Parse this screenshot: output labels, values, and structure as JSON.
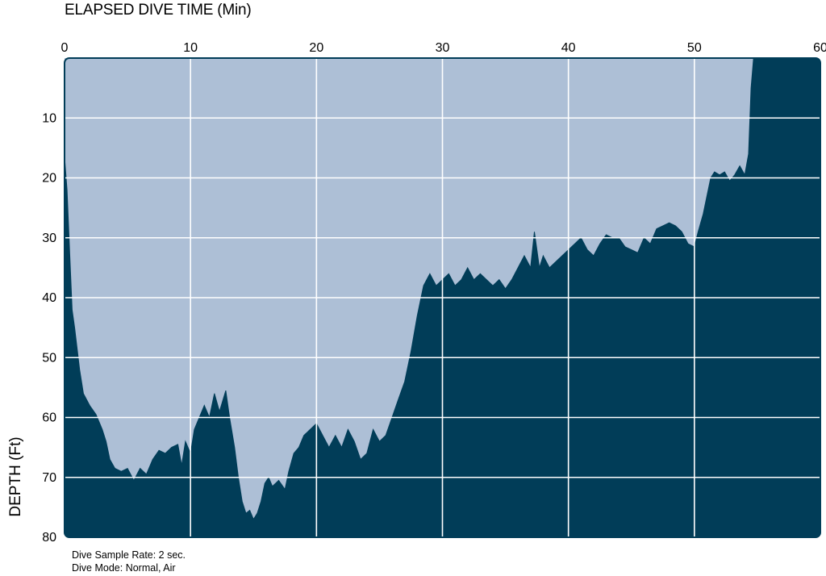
{
  "chart_data": {
    "type": "area",
    "title": "ELAPSED DIVE TIME (Min)",
    "xlabel": "ELAPSED DIVE TIME (Min)",
    "ylabel": "DEPTH (Ft)",
    "xlim": [
      0,
      60
    ],
    "ylim": [
      0,
      80
    ],
    "y_inverted": true,
    "x_axis_position": "top",
    "grid": true,
    "x_ticks": [
      "0",
      "10",
      "20",
      "30",
      "40",
      "50",
      "60"
    ],
    "y_ticks": [
      "10",
      "20",
      "30",
      "40",
      "50",
      "60",
      "70",
      "80"
    ],
    "colors": {
      "water": "#adbfd6",
      "seabed": "#013d58",
      "grid": "#ffffff"
    },
    "series": [
      {
        "points": [
          [
            0,
            16.5
          ],
          [
            0.2,
            22
          ],
          [
            0.4,
            32
          ],
          [
            0.6,
            42
          ],
          [
            0.8,
            45
          ],
          [
            1.2,
            52
          ],
          [
            1.5,
            56
          ],
          [
            2,
            58
          ],
          [
            2.5,
            59.5
          ],
          [
            3,
            62
          ],
          [
            3.3,
            64
          ],
          [
            3.6,
            67
          ],
          [
            4,
            68.5
          ],
          [
            4.5,
            69
          ],
          [
            5,
            68.5
          ],
          [
            5.5,
            70.5
          ],
          [
            6,
            68.5
          ],
          [
            6.5,
            69.5
          ],
          [
            7,
            67
          ],
          [
            7.5,
            65.5
          ],
          [
            8,
            66
          ],
          [
            8.5,
            65
          ],
          [
            9,
            64.5
          ],
          [
            9.3,
            68
          ],
          [
            9.6,
            64
          ],
          [
            10,
            66
          ],
          [
            10.3,
            62
          ],
          [
            10.7,
            60
          ],
          [
            11.1,
            58
          ],
          [
            11.5,
            60
          ],
          [
            11.9,
            56
          ],
          [
            12.3,
            59
          ],
          [
            12.8,
            55.5
          ],
          [
            13.1,
            60
          ],
          [
            13.5,
            65
          ],
          [
            13.8,
            70
          ],
          [
            14.1,
            74
          ],
          [
            14.4,
            76
          ],
          [
            14.7,
            75.5
          ],
          [
            15,
            77
          ],
          [
            15.3,
            76
          ],
          [
            15.6,
            74
          ],
          [
            15.9,
            71
          ],
          [
            16.2,
            70
          ],
          [
            16.5,
            71.5
          ],
          [
            17,
            70.5
          ],
          [
            17.5,
            72
          ],
          [
            17.8,
            69
          ],
          [
            18.2,
            66
          ],
          [
            18.6,
            65
          ],
          [
            19,
            63
          ],
          [
            19.5,
            62
          ],
          [
            20,
            61
          ],
          [
            20.5,
            63
          ],
          [
            21,
            65
          ],
          [
            21.5,
            63
          ],
          [
            22,
            65
          ],
          [
            22.5,
            62
          ],
          [
            23,
            64
          ],
          [
            23.5,
            67
          ],
          [
            24,
            66
          ],
          [
            24.5,
            62
          ],
          [
            25,
            64
          ],
          [
            25.5,
            63
          ],
          [
            26,
            60
          ],
          [
            26.5,
            57
          ],
          [
            27,
            54
          ],
          [
            27.5,
            49
          ],
          [
            28,
            43
          ],
          [
            28.5,
            38
          ],
          [
            29,
            36
          ],
          [
            29.5,
            38
          ],
          [
            30,
            37
          ],
          [
            30.5,
            36
          ],
          [
            31,
            38
          ],
          [
            31.5,
            37
          ],
          [
            32,
            35
          ],
          [
            32.5,
            37
          ],
          [
            33,
            36
          ],
          [
            33.5,
            37
          ],
          [
            34,
            38
          ],
          [
            34.5,
            37
          ],
          [
            35,
            38.5
          ],
          [
            35.5,
            37
          ],
          [
            36,
            35
          ],
          [
            36.5,
            33
          ],
          [
            37,
            35
          ],
          [
            37.3,
            29
          ],
          [
            37.7,
            35
          ],
          [
            38,
            33
          ],
          [
            38.5,
            35
          ],
          [
            39,
            34
          ],
          [
            39.5,
            33
          ],
          [
            40,
            32
          ],
          [
            40.5,
            31
          ],
          [
            41,
            30
          ],
          [
            41.5,
            32
          ],
          [
            42,
            33
          ],
          [
            42.5,
            31
          ],
          [
            43,
            29.5
          ],
          [
            43.5,
            30
          ],
          [
            44,
            30
          ],
          [
            44.5,
            31.5
          ],
          [
            45,
            32
          ],
          [
            45.5,
            32.5
          ],
          [
            46,
            30
          ],
          [
            46.5,
            31
          ],
          [
            47,
            28.5
          ],
          [
            47.5,
            28
          ],
          [
            48,
            27.5
          ],
          [
            48.5,
            28
          ],
          [
            49,
            29
          ],
          [
            49.5,
            31
          ],
          [
            50,
            31.5
          ],
          [
            50.3,
            29
          ],
          [
            50.7,
            26
          ],
          [
            51,
            23
          ],
          [
            51.3,
            20
          ],
          [
            51.6,
            19
          ],
          [
            52,
            19.5
          ],
          [
            52.4,
            19
          ],
          [
            52.8,
            20.5
          ],
          [
            53.2,
            19.5
          ],
          [
            53.6,
            18
          ],
          [
            54,
            19.5
          ],
          [
            54.3,
            16
          ],
          [
            54.5,
            5
          ],
          [
            54.7,
            0
          ]
        ]
      }
    ],
    "annotations": [
      "Dive Sample Rate: 2 sec.",
      "Dive Mode: Normal, Air"
    ]
  }
}
